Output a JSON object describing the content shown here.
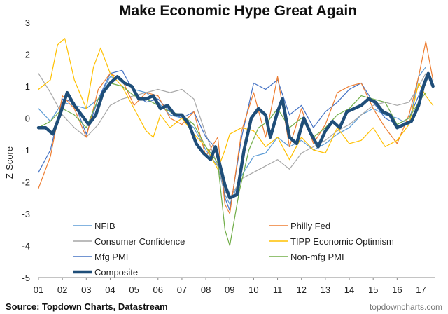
{
  "chart_data": {
    "type": "line",
    "title": "Make Economic Hype Great Again",
    "ylabel": "Z-Score",
    "xlabel": "",
    "ylim": [
      -5,
      3
    ],
    "yticks": [
      3,
      2,
      1,
      0,
      -1,
      -2,
      -3,
      -4,
      -5
    ],
    "xlim": [
      2001,
      2017.6
    ],
    "xticks": [
      {
        "label": "01",
        "value": 2001
      },
      {
        "label": "02",
        "value": 2002
      },
      {
        "label": "03",
        "value": 2003
      },
      {
        "label": "04",
        "value": 2004
      },
      {
        "label": "05",
        "value": 2005
      },
      {
        "label": "06",
        "value": 2006
      },
      {
        "label": "07",
        "value": 2007
      },
      {
        "label": "08",
        "value": 2008
      },
      {
        "label": "09",
        "value": 2009
      },
      {
        "label": "10",
        "value": 2010
      },
      {
        "label": "11",
        "value": 2011
      },
      {
        "label": "12",
        "value": 2012
      },
      {
        "label": "13",
        "value": 2013
      },
      {
        "label": "14",
        "value": 2014
      },
      {
        "label": "15",
        "value": 2015
      },
      {
        "label": "16",
        "value": 2016
      },
      {
        "label": "17",
        "value": 2017
      }
    ],
    "grid": false,
    "zero_line": true,
    "legend_position": "bottom-inside",
    "series": [
      {
        "name": "NFIB",
        "color": "#5b9bd5",
        "width": 1.2,
        "points": [
          [
            2001,
            0.3
          ],
          [
            2001.5,
            -0.1
          ],
          [
            2002,
            0.5
          ],
          [
            2002.5,
            0.4
          ],
          [
            2003,
            0.3
          ],
          [
            2003.5,
            0.6
          ],
          [
            2004,
            1.3
          ],
          [
            2004.5,
            1.2
          ],
          [
            2005,
            0.9
          ],
          [
            2005.5,
            0.8
          ],
          [
            2006,
            0.5
          ],
          [
            2006.5,
            0.1
          ],
          [
            2007,
            0.0
          ],
          [
            2007.5,
            -0.3
          ],
          [
            2008,
            -1.0
          ],
          [
            2008.5,
            -1.5
          ],
          [
            2008.8,
            -2.4
          ],
          [
            2009,
            -2.7
          ],
          [
            2009.5,
            -1.8
          ],
          [
            2010,
            -1.2
          ],
          [
            2010.5,
            -1.1
          ],
          [
            2011,
            -0.6
          ],
          [
            2011.5,
            -0.9
          ],
          [
            2012,
            -0.7
          ],
          [
            2012.5,
            -1.0
          ],
          [
            2013,
            -0.8
          ],
          [
            2013.5,
            -0.5
          ],
          [
            2014,
            -0.3
          ],
          [
            2014.5,
            0.1
          ],
          [
            2015,
            0.3
          ],
          [
            2015.5,
            0.1
          ],
          [
            2016,
            0.0
          ],
          [
            2016.5,
            -0.2
          ],
          [
            2016.9,
            1.3
          ],
          [
            2017.2,
            1.6
          ]
        ]
      },
      {
        "name": "Consumer Confidence",
        "color": "#a6a6a6",
        "width": 1.2,
        "points": [
          [
            2001,
            1.4
          ],
          [
            2001.5,
            0.8
          ],
          [
            2002,
            0.1
          ],
          [
            2002.5,
            -0.3
          ],
          [
            2003,
            -0.6
          ],
          [
            2003.5,
            -0.2
          ],
          [
            2004,
            0.4
          ],
          [
            2004.5,
            0.6
          ],
          [
            2005,
            0.7
          ],
          [
            2005.5,
            0.8
          ],
          [
            2006,
            0.9
          ],
          [
            2006.5,
            0.8
          ],
          [
            2007,
            0.9
          ],
          [
            2007.5,
            0.6
          ],
          [
            2008,
            -0.5
          ],
          [
            2008.5,
            -1.5
          ],
          [
            2008.8,
            -2.3
          ],
          [
            2009,
            -2.5
          ],
          [
            2009.5,
            -1.9
          ],
          [
            2010,
            -1.7
          ],
          [
            2010.5,
            -1.5
          ],
          [
            2011,
            -1.3
          ],
          [
            2011.5,
            -1.6
          ],
          [
            2012,
            -1.1
          ],
          [
            2012.5,
            -0.9
          ],
          [
            2013,
            -0.7
          ],
          [
            2013.5,
            -0.4
          ],
          [
            2014,
            -0.2
          ],
          [
            2014.5,
            0.1
          ],
          [
            2015,
            0.4
          ],
          [
            2015.5,
            0.5
          ],
          [
            2016,
            0.4
          ],
          [
            2016.5,
            0.5
          ],
          [
            2016.9,
            1.0
          ],
          [
            2017.2,
            1.4
          ]
        ]
      },
      {
        "name": "Mfg PMI",
        "color": "#4472c4",
        "width": 1.2,
        "points": [
          [
            2001,
            -1.7
          ],
          [
            2001.5,
            -1.0
          ],
          [
            2002,
            0.6
          ],
          [
            2002.5,
            0.5
          ],
          [
            2003,
            -0.5
          ],
          [
            2003.5,
            0.6
          ],
          [
            2004,
            1.4
          ],
          [
            2004.5,
            1.5
          ],
          [
            2005,
            0.8
          ],
          [
            2005.5,
            0.5
          ],
          [
            2006,
            0.6
          ],
          [
            2006.5,
            0.2
          ],
          [
            2007,
            0.0
          ],
          [
            2007.5,
            0.2
          ],
          [
            2008,
            -0.6
          ],
          [
            2008.5,
            -1.0
          ],
          [
            2008.8,
            -2.5
          ],
          [
            2009,
            -2.9
          ],
          [
            2009.5,
            -0.6
          ],
          [
            2010,
            1.1
          ],
          [
            2010.5,
            0.9
          ],
          [
            2011,
            1.2
          ],
          [
            2011.5,
            0.1
          ],
          [
            2012,
            0.4
          ],
          [
            2012.5,
            -0.3
          ],
          [
            2013,
            0.2
          ],
          [
            2013.5,
            0.5
          ],
          [
            2014,
            0.9
          ],
          [
            2014.5,
            1.1
          ],
          [
            2015,
            0.5
          ],
          [
            2015.5,
            0.0
          ],
          [
            2016,
            -0.2
          ],
          [
            2016.5,
            0.0
          ],
          [
            2016.9,
            0.7
          ],
          [
            2017.2,
            1.3
          ]
        ]
      },
      {
        "name": "Composite",
        "color": "#1f4e79",
        "width": 4.5,
        "points": [
          [
            2001,
            -0.3
          ],
          [
            2001.3,
            -0.3
          ],
          [
            2001.6,
            -0.5
          ],
          [
            2001.9,
            0.1
          ],
          [
            2002.2,
            0.8
          ],
          [
            2002.5,
            0.4
          ],
          [
            2002.8,
            0.1
          ],
          [
            2003.1,
            -0.2
          ],
          [
            2003.4,
            0.1
          ],
          [
            2003.7,
            0.8
          ],
          [
            2004.0,
            1.1
          ],
          [
            2004.3,
            1.3
          ],
          [
            2004.6,
            1.1
          ],
          [
            2004.9,
            1.0
          ],
          [
            2005.2,
            0.6
          ],
          [
            2005.5,
            0.6
          ],
          [
            2005.8,
            0.7
          ],
          [
            2006.1,
            0.3
          ],
          [
            2006.4,
            0.4
          ],
          [
            2006.7,
            0.1
          ],
          [
            2007.0,
            0.1
          ],
          [
            2007.3,
            -0.2
          ],
          [
            2007.6,
            -0.8
          ],
          [
            2007.9,
            -1.1
          ],
          [
            2008.2,
            -1.3
          ],
          [
            2008.4,
            -0.9
          ],
          [
            2008.6,
            -1.5
          ],
          [
            2008.8,
            -2.1
          ],
          [
            2009.0,
            -2.5
          ],
          [
            2009.3,
            -2.4
          ],
          [
            2009.6,
            -1.0
          ],
          [
            2009.9,
            0.0
          ],
          [
            2010.2,
            0.3
          ],
          [
            2010.5,
            0.1
          ],
          [
            2010.7,
            -0.6
          ],
          [
            2011.0,
            0.2
          ],
          [
            2011.2,
            0.6
          ],
          [
            2011.5,
            -0.6
          ],
          [
            2011.8,
            -0.8
          ],
          [
            2012.1,
            0.0
          ],
          [
            2012.4,
            -0.5
          ],
          [
            2012.7,
            -0.9
          ],
          [
            2013.0,
            -0.4
          ],
          [
            2013.3,
            -0.1
          ],
          [
            2013.6,
            -0.3
          ],
          [
            2013.9,
            0.2
          ],
          [
            2014.2,
            0.3
          ],
          [
            2014.5,
            0.4
          ],
          [
            2014.8,
            0.6
          ],
          [
            2015.1,
            0.5
          ],
          [
            2015.4,
            0.2
          ],
          [
            2015.7,
            0.1
          ],
          [
            2016.0,
            -0.3
          ],
          [
            2016.3,
            -0.2
          ],
          [
            2016.6,
            -0.1
          ],
          [
            2016.9,
            0.4
          ],
          [
            2017.1,
            1.0
          ],
          [
            2017.3,
            1.4
          ],
          [
            2017.5,
            1.0
          ]
        ]
      },
      {
        "name": "Philly Fed",
        "color": "#ed7d31",
        "width": 1.2,
        "points": [
          [
            2001,
            -2.2
          ],
          [
            2001.5,
            -1.2
          ],
          [
            2002,
            0.7
          ],
          [
            2002.5,
            0.3
          ],
          [
            2003,
            -0.6
          ],
          [
            2003.5,
            0.9
          ],
          [
            2004,
            1.4
          ],
          [
            2004.5,
            1.2
          ],
          [
            2005,
            0.4
          ],
          [
            2005.5,
            0.8
          ],
          [
            2006,
            0.7
          ],
          [
            2006.5,
            0.0
          ],
          [
            2007,
            -0.2
          ],
          [
            2007.5,
            0.2
          ],
          [
            2008,
            -1.2
          ],
          [
            2008.5,
            -0.6
          ],
          [
            2008.8,
            -2.7
          ],
          [
            2009,
            -3.0
          ],
          [
            2009.5,
            -0.4
          ],
          [
            2010,
            0.8
          ],
          [
            2010.5,
            -0.6
          ],
          [
            2011,
            1.3
          ],
          [
            2011.5,
            -0.9
          ],
          [
            2012,
            0.3
          ],
          [
            2012.5,
            -0.8
          ],
          [
            2013,
            -0.2
          ],
          [
            2013.5,
            0.8
          ],
          [
            2014,
            1.0
          ],
          [
            2014.5,
            1.1
          ],
          [
            2015,
            0.3
          ],
          [
            2015.5,
            -0.3
          ],
          [
            2016,
            -0.8
          ],
          [
            2016.5,
            0.1
          ],
          [
            2016.9,
            1.3
          ],
          [
            2017.2,
            2.4
          ],
          [
            2017.5,
            1.2
          ]
        ]
      },
      {
        "name": "TIPP Economic Optimism",
        "color": "#ffc000",
        "width": 1.2,
        "points": [
          [
            2001,
            0.9
          ],
          [
            2001.5,
            1.2
          ],
          [
            2001.8,
            2.3
          ],
          [
            2002.1,
            2.5
          ],
          [
            2002.5,
            1.2
          ],
          [
            2003,
            0.3
          ],
          [
            2003.3,
            1.6
          ],
          [
            2003.6,
            2.2
          ],
          [
            2004,
            1.4
          ],
          [
            2004.5,
            1.0
          ],
          [
            2005,
            0.3
          ],
          [
            2005.5,
            -0.4
          ],
          [
            2005.8,
            -0.6
          ],
          [
            2006.1,
            0.1
          ],
          [
            2006.5,
            -0.3
          ],
          [
            2007,
            0.0
          ],
          [
            2007.5,
            -0.5
          ],
          [
            2008,
            -0.9
          ],
          [
            2008.5,
            -1.6
          ],
          [
            2008.8,
            -1.0
          ],
          [
            2009,
            -0.5
          ],
          [
            2009.5,
            -0.3
          ],
          [
            2010,
            -0.4
          ],
          [
            2010.5,
            -0.9
          ],
          [
            2011,
            -0.6
          ],
          [
            2011.5,
            -1.3
          ],
          [
            2012,
            -0.6
          ],
          [
            2012.5,
            -1.0
          ],
          [
            2013,
            -1.1
          ],
          [
            2013.5,
            -0.3
          ],
          [
            2014,
            -0.8
          ],
          [
            2014.5,
            -0.7
          ],
          [
            2015,
            -0.3
          ],
          [
            2015.5,
            -0.9
          ],
          [
            2016,
            -0.7
          ],
          [
            2016.5,
            -0.2
          ],
          [
            2016.9,
            1.1
          ],
          [
            2017.2,
            0.7
          ],
          [
            2017.5,
            0.4
          ]
        ]
      },
      {
        "name": "Non-mfg PMI",
        "color": "#70ad47",
        "width": 1.2,
        "points": [
          [
            2001,
            -0.3
          ],
          [
            2001.5,
            -0.1
          ],
          [
            2002,
            0.3
          ],
          [
            2002.5,
            0.1
          ],
          [
            2003,
            -0.3
          ],
          [
            2003.5,
            0.6
          ],
          [
            2004,
            1.1
          ],
          [
            2004.5,
            1.0
          ],
          [
            2005,
            0.7
          ],
          [
            2005.5,
            0.6
          ],
          [
            2006,
            0.4
          ],
          [
            2006.5,
            0.2
          ],
          [
            2007,
            0.1
          ],
          [
            2007.5,
            -0.2
          ],
          [
            2008,
            -0.9
          ],
          [
            2008.5,
            -1.4
          ],
          [
            2008.8,
            -3.5
          ],
          [
            2009.0,
            -4.0
          ],
          [
            2009.4,
            -2.3
          ],
          [
            2009.8,
            -1.0
          ],
          [
            2010.2,
            -0.3
          ],
          [
            2010.6,
            -0.1
          ],
          [
            2011,
            0.3
          ],
          [
            2011.5,
            -0.3
          ],
          [
            2012,
            0.0
          ],
          [
            2012.5,
            -0.6
          ],
          [
            2013,
            -0.3
          ],
          [
            2013.5,
            0.1
          ],
          [
            2014,
            0.3
          ],
          [
            2014.5,
            0.7
          ],
          [
            2015,
            0.6
          ],
          [
            2015.5,
            0.5
          ],
          [
            2016,
            -0.2
          ],
          [
            2016.5,
            0.0
          ],
          [
            2016.9,
            0.5
          ],
          [
            2017.2,
            0.8
          ]
        ]
      }
    ],
    "source": "Source: Topdown Charts, Datastream",
    "watermark": "topdowncharts.com"
  }
}
